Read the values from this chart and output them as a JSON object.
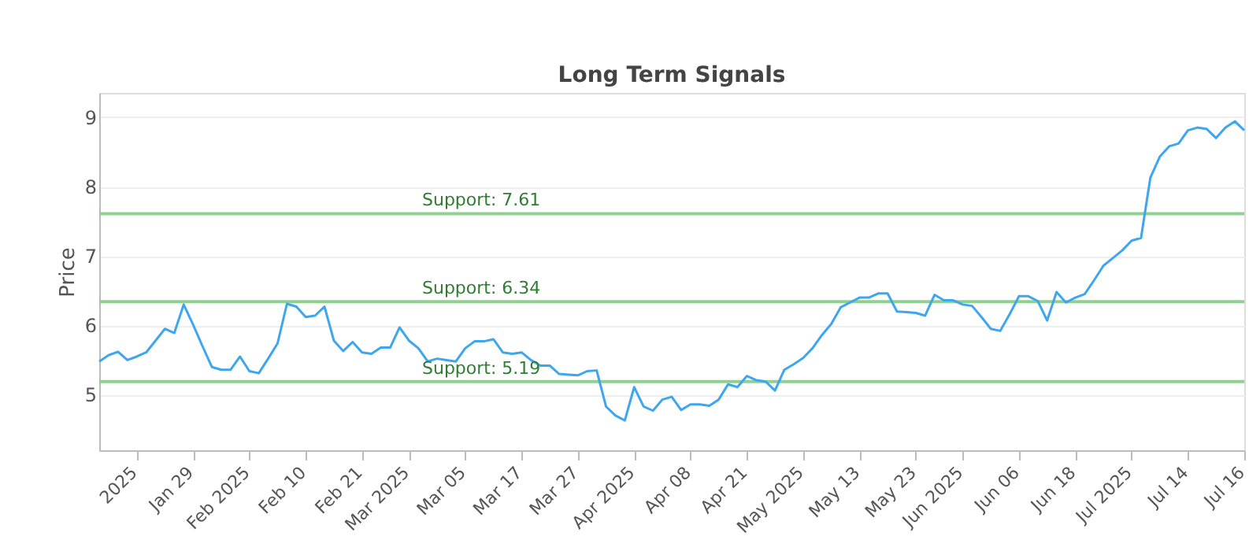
{
  "chart_data": {
    "type": "line",
    "title": "Long Term Signals",
    "ylabel": "Price",
    "categories": [
      null,
      null,
      null,
      null,
      "2025",
      null,
      null,
      null,
      null,
      null,
      "Jan 29",
      null,
      null,
      null,
      null,
      null,
      "Feb 2025",
      null,
      null,
      null,
      null,
      null,
      "Feb 10",
      null,
      null,
      null,
      null,
      null,
      "Feb 21",
      null,
      null,
      null,
      null,
      "Mar 2025",
      null,
      null,
      null,
      null,
      null,
      "Mar 05",
      null,
      null,
      null,
      null,
      null,
      "Mar 17",
      null,
      null,
      null,
      null,
      null,
      "Mar 27",
      null,
      null,
      null,
      null,
      null,
      "Apr 2025",
      null,
      null,
      null,
      null,
      null,
      "Apr 08",
      null,
      null,
      null,
      null,
      null,
      "Apr 21",
      null,
      null,
      null,
      null,
      null,
      "May 2025",
      null,
      null,
      null,
      null,
      null,
      "May 13",
      null,
      null,
      null,
      null,
      null,
      "May 23",
      null,
      null,
      null,
      null,
      "Jun 2025",
      null,
      null,
      null,
      null,
      null,
      "Jun 06",
      null,
      null,
      null,
      null,
      null,
      "Jun 18",
      null,
      null,
      null,
      null,
      null,
      "Jul 2025",
      null,
      null,
      null,
      null,
      null,
      "Jul 14",
      null,
      null,
      null,
      null,
      null,
      "Jul 16"
    ],
    "series": [
      {
        "color": "#3ea6ee",
        "values": [
          5.48,
          5.57,
          5.62,
          5.5,
          5.55,
          5.61,
          5.78,
          5.95,
          5.89,
          6.3,
          6.01,
          5.7,
          5.4,
          5.36,
          5.36,
          5.55,
          5.34,
          5.31,
          5.52,
          5.74,
          6.31,
          6.27,
          6.12,
          6.14,
          6.27,
          5.78,
          5.63,
          5.76,
          5.61,
          5.59,
          5.68,
          5.68,
          5.97,
          5.78,
          5.67,
          5.48,
          5.52,
          5.5,
          5.48,
          5.67,
          5.77,
          5.77,
          5.8,
          5.61,
          5.59,
          5.61,
          5.5,
          5.42,
          5.42,
          5.3,
          5.29,
          5.28,
          5.34,
          5.35,
          4.83,
          4.7,
          4.63,
          5.11,
          4.83,
          4.77,
          4.93,
          4.97,
          4.78,
          4.86,
          4.86,
          4.84,
          4.93,
          5.15,
          5.11,
          5.27,
          5.21,
          5.19,
          5.06,
          5.36,
          5.44,
          5.53,
          5.67,
          5.86,
          6.02,
          6.26,
          6.33,
          6.4,
          6.4,
          6.46,
          6.46,
          6.2,
          6.19,
          6.18,
          6.14,
          6.44,
          6.36,
          6.36,
          6.3,
          6.28,
          6.12,
          5.95,
          5.92,
          6.16,
          6.42,
          6.42,
          6.35,
          6.07,
          6.48,
          6.33,
          6.4,
          6.45,
          6.65,
          6.86,
          6.97,
          7.08,
          7.22,
          7.26,
          8.13,
          8.43,
          8.58,
          8.62,
          8.81,
          8.85,
          8.83,
          8.7,
          8.85,
          8.94,
          8.81
        ]
      }
    ],
    "ylim": [
      4.2,
      9.35
    ],
    "yticks": [
      5,
      6,
      7,
      8,
      9
    ],
    "grid": "y",
    "marker": "none",
    "line_style": "solid",
    "ref_lines": [
      {
        "axis": "y",
        "value": 7.61,
        "label": "Support: 7.61",
        "color": "#8fd18f"
      },
      {
        "axis": "y",
        "value": 6.34,
        "label": "Support: 6.34",
        "color": "#8fd18f"
      },
      {
        "axis": "y",
        "value": 5.19,
        "label": "Support: 5.19",
        "color": "#8fd18f"
      }
    ]
  }
}
